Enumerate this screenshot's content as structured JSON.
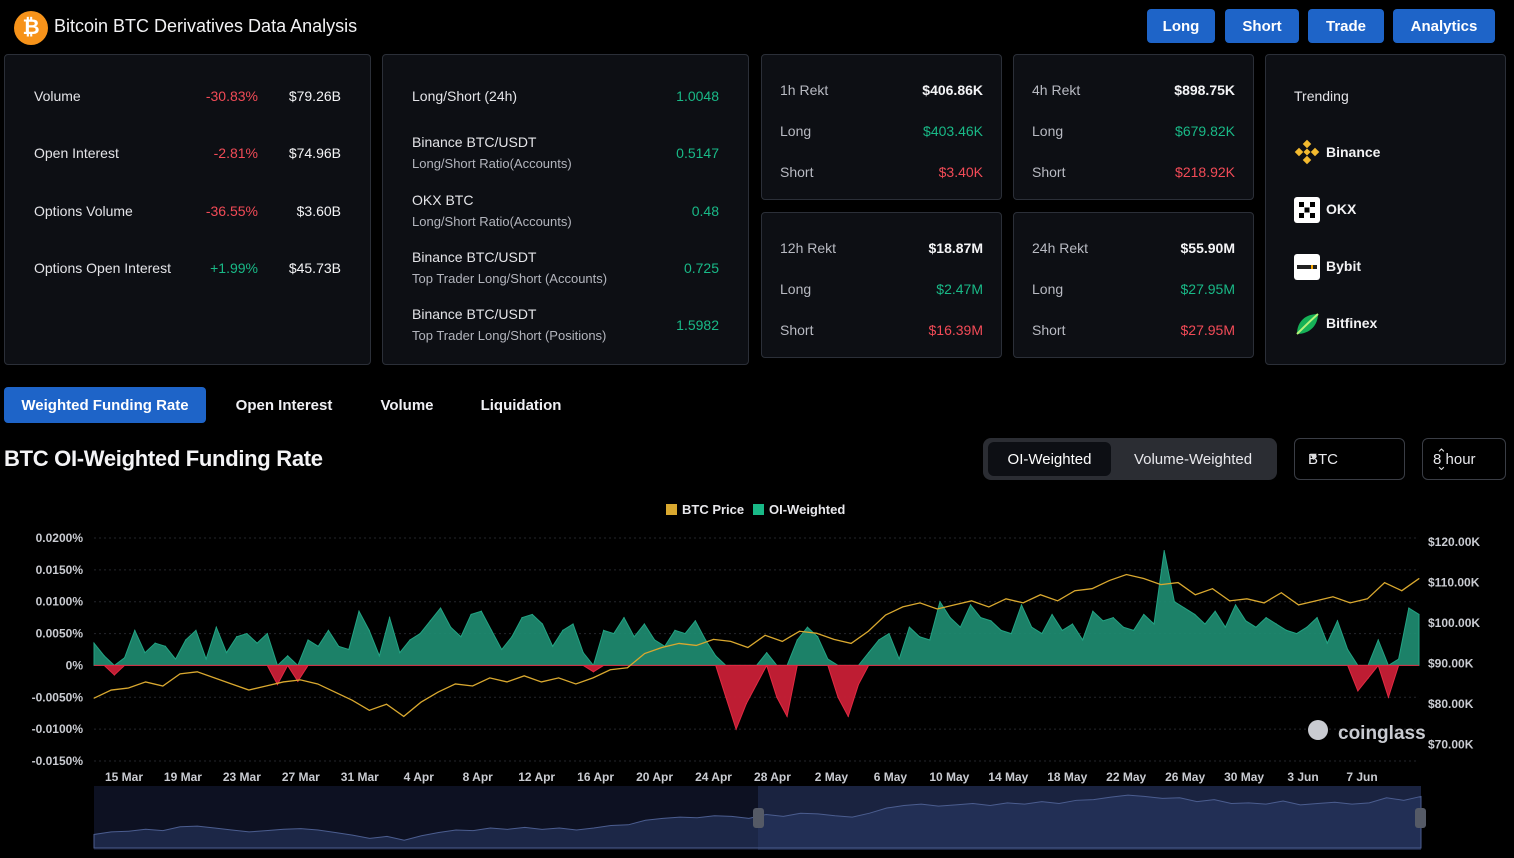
{
  "header": {
    "title": "Bitcoin BTC Derivatives Data Analysis",
    "logo_glyph": "₿",
    "buttons": [
      "Long",
      "Short",
      "Trade",
      "Analytics"
    ]
  },
  "colors": {
    "accent": "#1e64c8",
    "positive": "#19b987",
    "negative": "#f24b57",
    "price_line": "#d9a82f",
    "funding_fill": "#1f8f73",
    "funding_neg_fill": "#c81f36"
  },
  "market_stats": [
    {
      "label": "Volume",
      "change": "-30.83%",
      "value": "$79.26B"
    },
    {
      "label": "Open Interest",
      "change": "-2.81%",
      "value": "$74.96B"
    },
    {
      "label": "Options Volume",
      "change": "-36.55%",
      "value": "$3.60B"
    },
    {
      "label": "Options Open Interest",
      "change": "+1.99%",
      "value": "$45.73B"
    }
  ],
  "long_short": [
    {
      "label": "Long/Short (24h)",
      "sub": "",
      "value": "1.0048"
    },
    {
      "label": "Binance BTC/USDT",
      "sub": "Long/Short Ratio(Accounts)",
      "value": "0.5147"
    },
    {
      "label": "OKX BTC",
      "sub": "Long/Short Ratio(Accounts)",
      "value": "0.48"
    },
    {
      "label": "Binance BTC/USDT",
      "sub": "Top Trader Long/Short (Accounts)",
      "value": "0.725"
    },
    {
      "label": "Binance BTC/USDT",
      "sub": "Top Trader Long/Short (Positions)",
      "value": "1.5982"
    }
  ],
  "rekt": [
    {
      "title": "1h Rekt",
      "total": "$406.86K",
      "long": "$403.46K",
      "short": "$3.40K"
    },
    {
      "title": "4h Rekt",
      "total": "$898.75K",
      "long": "$679.82K",
      "short": "$218.92K"
    },
    {
      "title": "12h Rekt",
      "total": "$18.87M",
      "long": "$2.47M",
      "short": "$16.39M"
    },
    {
      "title": "24h Rekt",
      "total": "$55.90M",
      "long": "$27.95M",
      "short": "$27.95M"
    }
  ],
  "rekt_labels": {
    "long": "Long",
    "short": "Short"
  },
  "trending": {
    "title": "Trending",
    "items": [
      {
        "name": "Binance",
        "icon": "binance-icon"
      },
      {
        "name": "OKX",
        "icon": "okx-icon"
      },
      {
        "name": "Bybit",
        "icon": "bybit-icon"
      },
      {
        "name": "Bitfinex",
        "icon": "bitfinex-icon"
      }
    ]
  },
  "tabs": [
    "Weighted Funding Rate",
    "Open Interest",
    "Volume",
    "Liquidation"
  ],
  "active_tab": "Weighted Funding Rate",
  "chart_section": {
    "title": "BTC OI-Weighted Funding Rate",
    "weight_options": [
      "OI-Weighted",
      "Volume-Weighted"
    ],
    "active_weight": "OI-Weighted",
    "coin_select": "BTC",
    "interval_select": "8 hour",
    "watermark": "coinglass"
  },
  "chart_data": {
    "type": "area",
    "legend": [
      "BTC Price",
      "OI-Weighted"
    ],
    "legend_position": "top-center",
    "x_ticks": [
      "15 Mar",
      "19 Mar",
      "23 Mar",
      "27 Mar",
      "31 Mar",
      "4 Apr",
      "8 Apr",
      "12 Apr",
      "16 Apr",
      "20 Apr",
      "24 Apr",
      "28 Apr",
      "2 May",
      "6 May",
      "10 May",
      "14 May",
      "18 May",
      "22 May",
      "26 May",
      "30 May",
      "3 Jun",
      "7 Jun"
    ],
    "y_left_ticks": [
      "0.0200%",
      "0.0150%",
      "0.0100%",
      "0.0050%",
      "0%",
      "-0.0050%",
      "-0.0100%",
      "-0.0150%"
    ],
    "y_left_range": [
      -0.015,
      0.02
    ],
    "y_right_ticks": [
      "$120.00K",
      "$110.00K",
      "$100.00K",
      "$90.00K",
      "$80.00K",
      "$70.00K"
    ],
    "y_right_range": [
      65000,
      120000
    ],
    "grid": true,
    "series": [
      {
        "name": "OI-Weighted",
        "unit": "%",
        "values": [
          0.0035,
          0.0015,
          -0.0015,
          0.0012,
          0.0055,
          0.002,
          0.0035,
          0.003,
          0.001,
          0.004,
          0.0055,
          0.001,
          0.006,
          0.002,
          0.0045,
          0.005,
          0.0035,
          0.005,
          -0.003,
          0.0015,
          -0.0025,
          0.004,
          0.003,
          0.0055,
          0.003,
          0.0025,
          0.0085,
          0.0055,
          0.0015,
          0.0075,
          0.002,
          0.004,
          0.005,
          0.007,
          0.009,
          0.006,
          0.0045,
          0.008,
          0.0085,
          0.0055,
          0.0025,
          0.0045,
          0.0075,
          0.008,
          0.0065,
          0.003,
          0.0055,
          0.0065,
          0.002,
          -0.001,
          0.0055,
          0.005,
          0.0075,
          0.0045,
          0.0065,
          0.004,
          0.003,
          0.0055,
          0.005,
          0.007,
          0.004,
          0.0015,
          -0.005,
          -0.01,
          -0.006,
          -0.003,
          0.002,
          -0.005,
          -0.008,
          0.004,
          0.006,
          0.0045,
          0.001,
          -0.005,
          -0.008,
          -0.003,
          0.002,
          0.004,
          0.005,
          0.001,
          0.006,
          0.0045,
          0.004,
          0.01,
          0.0075,
          0.006,
          0.0095,
          0.0075,
          0.007,
          0.0055,
          0.005,
          0.0095,
          0.006,
          0.005,
          0.008,
          0.0055,
          0.0065,
          0.004,
          0.0085,
          0.007,
          0.0075,
          0.006,
          0.0055,
          0.008,
          0.0065,
          0.018,
          0.01,
          0.009,
          0.008,
          0.0065,
          0.0085,
          0.006,
          0.0095,
          0.007,
          0.006,
          0.0075,
          0.0065,
          0.0055,
          0.005,
          0.006,
          0.0075,
          0.0035,
          0.007,
          0.0025,
          -0.004,
          -0.002,
          0.004,
          -0.005,
          0.001,
          0.009,
          0.008
        ]
      },
      {
        "name": "BTC Price",
        "unit": "USD",
        "values": [
          80500,
          82500,
          83000,
          84500,
          83500,
          86500,
          87000,
          85500,
          84000,
          82500,
          83500,
          84500,
          85000,
          84000,
          82000,
          80000,
          77500,
          79000,
          76000,
          79500,
          82000,
          84000,
          83500,
          85500,
          84500,
          86000,
          84500,
          85500,
          84000,
          85500,
          87500,
          88000,
          91500,
          93000,
          94000,
          93500,
          95000,
          94500,
          93000,
          96000,
          94500,
          97000,
          96500,
          95000,
          94000,
          97000,
          101000,
          103000,
          104000,
          102500,
          103500,
          104500,
          103000,
          105000,
          104000,
          106000,
          104500,
          107000,
          107500,
          109500,
          111000,
          110000,
          108500,
          109000,
          106000,
          107500,
          104500,
          105000,
          104000,
          106500,
          103500,
          104500,
          105500,
          104000,
          105000,
          109000,
          107000,
          110000
        ]
      }
    ]
  }
}
